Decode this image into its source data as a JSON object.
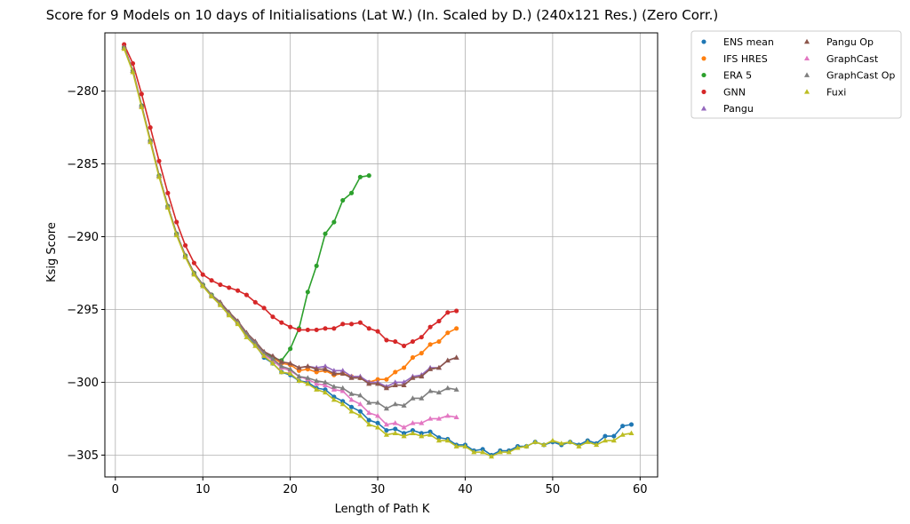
{
  "chart_data": {
    "type": "line",
    "title": "Score for 9 Models on 10 days of Initialisations (Lat W.) (In. Scaled by D.) (240x121 Res.) (Zero Corr.)",
    "xlabel": "Length of Path K",
    "ylabel": "Ksig Score",
    "xlim": [
      -1.2,
      62
    ],
    "ylim": [
      -306.5,
      -276.0
    ],
    "xticks": [
      0,
      10,
      20,
      30,
      40,
      50,
      60
    ],
    "yticks": [
      -280,
      -285,
      -290,
      -295,
      -300,
      -305
    ],
    "xtick_labels": [
      "0",
      "10",
      "20",
      "30",
      "40",
      "50",
      "60"
    ],
    "ytick_labels": [
      "−280",
      "−285",
      "−290",
      "−295",
      "−300",
      "−305"
    ],
    "grid": true,
    "legend_position": "outside-upper-right",
    "series": [
      {
        "name": "ENS mean",
        "color": "#1f77b4",
        "marker": "circle",
        "x": [
          1,
          2,
          3,
          4,
          5,
          6,
          7,
          8,
          9,
          10,
          11,
          12,
          13,
          14,
          15,
          16,
          17,
          18,
          19,
          20,
          21,
          22,
          23,
          24,
          25,
          26,
          27,
          28,
          29,
          30,
          31,
          32,
          33,
          34,
          35,
          36,
          37,
          38,
          39,
          40,
          41,
          42,
          43,
          44,
          45,
          46,
          47,
          48,
          49,
          50,
          51,
          52,
          53,
          54,
          55,
          56,
          57,
          58,
          59
        ],
        "y": [
          -277.0,
          -278.6,
          -281.0,
          -283.4,
          -285.8,
          -287.9,
          -289.8,
          -291.3,
          -292.5,
          -293.3,
          -294.0,
          -294.6,
          -295.3,
          -295.9,
          -296.7,
          -297.4,
          -298.3,
          -298.7,
          -299.3,
          -299.5,
          -299.9,
          -300.0,
          -300.4,
          -300.5,
          -301.0,
          -301.3,
          -301.7,
          -302.0,
          -302.6,
          -302.8,
          -303.3,
          -303.2,
          -303.5,
          -303.3,
          -303.5,
          -303.4,
          -303.8,
          -303.9,
          -304.3,
          -304.3,
          -304.7,
          -304.6,
          -305.0,
          -304.7,
          -304.7,
          -304.4,
          -304.4,
          -304.1,
          -304.3,
          -304.1,
          -304.3,
          -304.1,
          -304.3,
          -304.0,
          -304.2,
          -303.7,
          -303.7,
          -303.0,
          -302.9
        ]
      },
      {
        "name": "IFS HRES",
        "color": "#ff7f0e",
        "marker": "circle",
        "x": [
          1,
          2,
          3,
          4,
          5,
          6,
          7,
          8,
          9,
          10,
          11,
          12,
          13,
          14,
          15,
          16,
          17,
          18,
          19,
          20,
          21,
          22,
          23,
          24,
          25,
          26,
          27,
          28,
          29,
          30,
          31,
          32,
          33,
          34,
          35,
          36,
          37,
          38,
          39
        ],
        "y": [
          -277.0,
          -278.6,
          -281.0,
          -283.4,
          -285.8,
          -287.9,
          -289.8,
          -291.3,
          -292.5,
          -293.3,
          -294.0,
          -294.6,
          -295.3,
          -295.9,
          -296.7,
          -297.3,
          -298.0,
          -298.3,
          -298.7,
          -298.8,
          -299.2,
          -299.1,
          -299.3,
          -299.2,
          -299.5,
          -299.4,
          -299.6,
          -299.7,
          -300.0,
          -299.8,
          -299.8,
          -299.3,
          -299.0,
          -298.3,
          -298.0,
          -297.4,
          -297.2,
          -296.6,
          -296.3
        ]
      },
      {
        "name": "ERA 5",
        "color": "#2ca02c",
        "marker": "circle",
        "x": [
          1,
          2,
          3,
          4,
          5,
          6,
          7,
          8,
          9,
          10,
          11,
          12,
          13,
          14,
          15,
          16,
          17,
          18,
          19,
          20,
          21,
          22,
          23,
          24,
          25,
          26,
          27,
          28,
          29
        ],
        "y": [
          -277.0,
          -278.6,
          -281.0,
          -283.4,
          -285.8,
          -287.9,
          -289.8,
          -291.3,
          -292.5,
          -293.3,
          -294.0,
          -294.6,
          -295.3,
          -295.9,
          -296.7,
          -297.3,
          -298.0,
          -298.3,
          -298.5,
          -297.7,
          -296.3,
          -293.8,
          -292.0,
          -289.8,
          -289.0,
          -287.5,
          -287.0,
          -285.9,
          -285.8
        ]
      },
      {
        "name": "GNN",
        "color": "#d62728",
        "marker": "circle",
        "x": [
          1,
          2,
          3,
          4,
          5,
          6,
          7,
          8,
          9,
          10,
          11,
          12,
          13,
          14,
          15,
          16,
          17,
          18,
          19,
          20,
          21,
          22,
          23,
          24,
          25,
          26,
          27,
          28,
          29,
          30,
          31,
          32,
          33,
          34,
          35,
          36,
          37,
          38,
          39
        ],
        "y": [
          -276.8,
          -278.1,
          -280.2,
          -282.5,
          -284.8,
          -287.0,
          -289.0,
          -290.6,
          -291.8,
          -292.6,
          -293.0,
          -293.3,
          -293.5,
          -293.7,
          -294.0,
          -294.5,
          -294.9,
          -295.5,
          -295.9,
          -296.2,
          -296.4,
          -296.4,
          -296.4,
          -296.3,
          -296.3,
          -296.0,
          -296.0,
          -295.9,
          -296.3,
          -296.5,
          -297.1,
          -297.2,
          -297.5,
          -297.2,
          -296.9,
          -296.2,
          -295.8,
          -295.2,
          -295.1
        ]
      },
      {
        "name": "Pangu",
        "color": "#9467bd",
        "marker": "triangle",
        "x": [
          1,
          2,
          3,
          4,
          5,
          6,
          7,
          8,
          9,
          10,
          11,
          12,
          13,
          14,
          15,
          16,
          17,
          18,
          19,
          20,
          21,
          22,
          23,
          24,
          25,
          26,
          27,
          28,
          29,
          30,
          31,
          32,
          33,
          34,
          35,
          36,
          37,
          38,
          39
        ],
        "y": [
          -277.0,
          -278.6,
          -281.0,
          -283.4,
          -285.8,
          -287.9,
          -289.8,
          -291.3,
          -292.5,
          -293.3,
          -294.0,
          -294.5,
          -295.2,
          -295.8,
          -296.6,
          -297.2,
          -297.9,
          -298.2,
          -298.6,
          -298.7,
          -299.0,
          -298.9,
          -299.0,
          -298.9,
          -299.2,
          -299.2,
          -299.6,
          -299.6,
          -300.0,
          -300.0,
          -300.3,
          -300.0,
          -300.0,
          -299.6,
          -299.5,
          -299.0,
          -299.0,
          -298.5,
          -298.3
        ]
      },
      {
        "name": "Pangu Op",
        "color": "#8c564b",
        "marker": "triangle",
        "x": [
          1,
          2,
          3,
          4,
          5,
          6,
          7,
          8,
          9,
          10,
          11,
          12,
          13,
          14,
          15,
          16,
          17,
          18,
          19,
          20,
          21,
          22,
          23,
          24,
          25,
          26,
          27,
          28,
          29,
          30,
          31,
          32,
          33,
          34,
          35,
          36,
          37,
          38,
          39
        ],
        "y": [
          -277.0,
          -278.6,
          -281.0,
          -283.4,
          -285.8,
          -287.9,
          -289.8,
          -291.3,
          -292.5,
          -293.3,
          -294.0,
          -294.5,
          -295.2,
          -295.8,
          -296.6,
          -297.2,
          -297.9,
          -298.2,
          -298.6,
          -298.7,
          -299.0,
          -298.9,
          -299.1,
          -299.1,
          -299.4,
          -299.4,
          -299.7,
          -299.7,
          -300.1,
          -300.1,
          -300.4,
          -300.2,
          -300.2,
          -299.7,
          -299.6,
          -299.1,
          -299.0,
          -298.5,
          -298.3
        ]
      },
      {
        "name": "GraphCast",
        "color": "#e377c2",
        "marker": "triangle",
        "x": [
          1,
          2,
          3,
          4,
          5,
          6,
          7,
          8,
          9,
          10,
          11,
          12,
          13,
          14,
          15,
          16,
          17,
          18,
          19,
          20,
          21,
          22,
          23,
          24,
          25,
          26,
          27,
          28,
          29,
          30,
          31,
          32,
          33,
          34,
          35,
          36,
          37,
          38,
          39
        ],
        "y": [
          -277.0,
          -278.6,
          -281.0,
          -283.4,
          -285.8,
          -287.9,
          -289.8,
          -291.3,
          -292.5,
          -293.3,
          -294.0,
          -294.6,
          -295.3,
          -295.9,
          -296.7,
          -297.3,
          -298.1,
          -298.5,
          -299.0,
          -299.2,
          -299.6,
          -299.8,
          -300.1,
          -300.2,
          -300.5,
          -300.6,
          -301.2,
          -301.5,
          -302.1,
          -302.3,
          -302.9,
          -302.8,
          -303.1,
          -302.8,
          -302.8,
          -302.5,
          -302.5,
          -302.3,
          -302.4
        ]
      },
      {
        "name": "GraphCast Op",
        "color": "#7f7f7f",
        "marker": "triangle",
        "x": [
          1,
          2,
          3,
          4,
          5,
          6,
          7,
          8,
          9,
          10,
          11,
          12,
          13,
          14,
          15,
          16,
          17,
          18,
          19,
          20,
          21,
          22,
          23,
          24,
          25,
          26,
          27,
          28,
          29,
          30,
          31,
          32,
          33,
          34,
          35,
          36,
          37,
          38,
          39
        ],
        "y": [
          -277.0,
          -278.6,
          -281.0,
          -283.4,
          -285.8,
          -287.9,
          -289.8,
          -291.3,
          -292.5,
          -293.3,
          -294.0,
          -294.6,
          -295.3,
          -295.9,
          -296.7,
          -297.3,
          -298.0,
          -298.4,
          -298.9,
          -299.1,
          -299.6,
          -299.7,
          -299.9,
          -300.0,
          -300.3,
          -300.4,
          -300.8,
          -300.9,
          -301.4,
          -301.4,
          -301.8,
          -301.5,
          -301.6,
          -301.1,
          -301.1,
          -300.6,
          -300.7,
          -300.4,
          -300.5
        ]
      },
      {
        "name": "Fuxi",
        "color": "#bcbd22",
        "marker": "triangle",
        "x": [
          1,
          2,
          3,
          4,
          5,
          6,
          7,
          8,
          9,
          10,
          11,
          12,
          13,
          14,
          15,
          16,
          17,
          18,
          19,
          20,
          21,
          22,
          23,
          24,
          25,
          26,
          27,
          28,
          29,
          30,
          31,
          32,
          33,
          34,
          35,
          36,
          37,
          38,
          39,
          40,
          41,
          42,
          43,
          44,
          45,
          46,
          47,
          48,
          49,
          50,
          51,
          52,
          53,
          54,
          55,
          56,
          57,
          58,
          59
        ],
        "y": [
          -277.1,
          -278.7,
          -281.1,
          -283.5,
          -285.9,
          -288.0,
          -289.9,
          -291.4,
          -292.6,
          -293.4,
          -294.1,
          -294.7,
          -295.4,
          -296.0,
          -296.9,
          -297.5,
          -298.2,
          -298.7,
          -299.3,
          -299.4,
          -299.9,
          -300.1,
          -300.5,
          -300.7,
          -301.2,
          -301.5,
          -302.0,
          -302.3,
          -302.9,
          -303.1,
          -303.6,
          -303.5,
          -303.7,
          -303.5,
          -303.7,
          -303.6,
          -304.0,
          -304.0,
          -304.4,
          -304.4,
          -304.8,
          -304.8,
          -305.1,
          -304.8,
          -304.8,
          -304.5,
          -304.4,
          -304.1,
          -304.3,
          -304.0,
          -304.2,
          -304.1,
          -304.4,
          -304.1,
          -304.3,
          -304.0,
          -304.0,
          -303.6,
          -303.5
        ]
      }
    ]
  }
}
